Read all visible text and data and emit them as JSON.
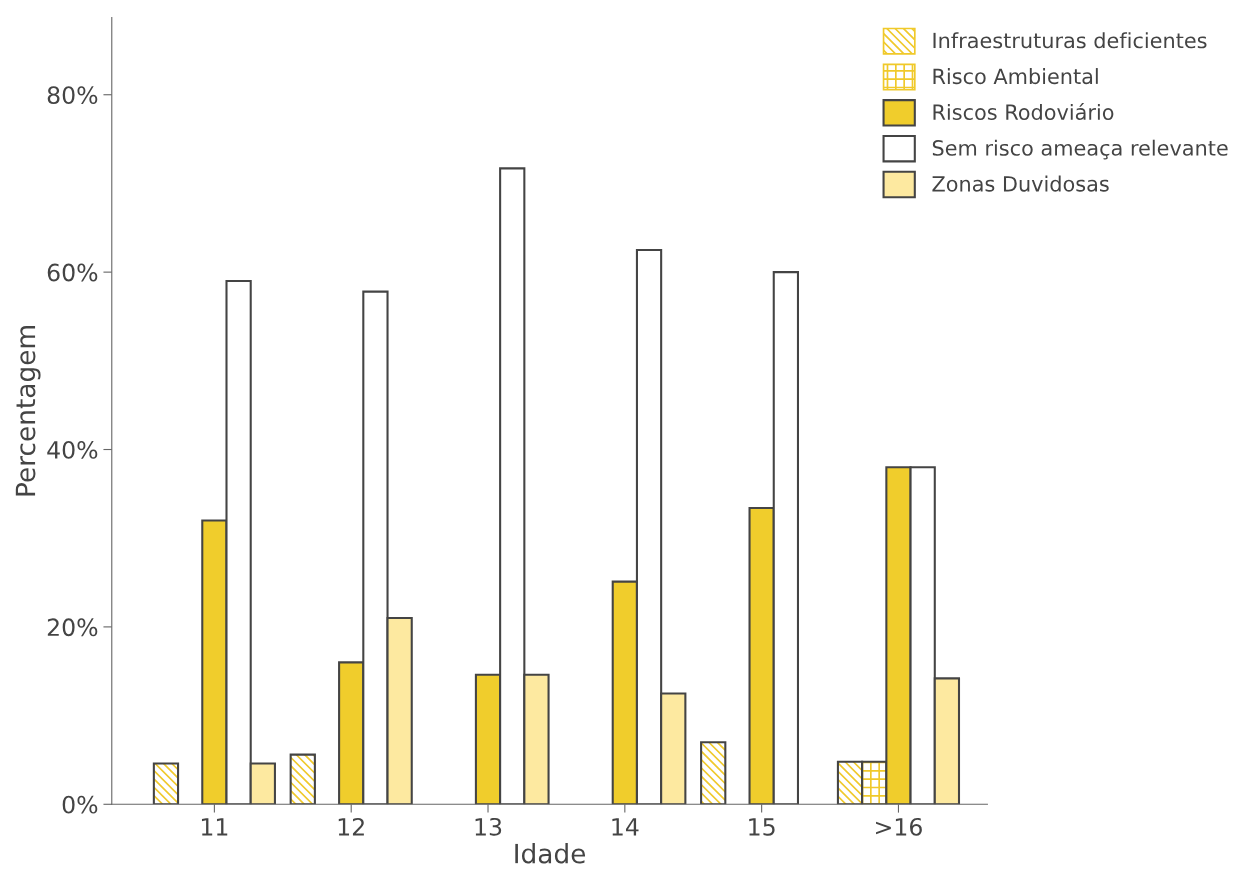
{
  "chart_data": {
    "type": "bar",
    "xlabel": "Idade",
    "ylabel": "Percentagem",
    "categories": [
      "11",
      "12",
      "13",
      "14",
      "15",
      ">16"
    ],
    "series": [
      {
        "name": "Infraestruturas deficientes",
        "color": "#f0c92a",
        "values": [
          4.6,
          5.6,
          null,
          null,
          7.0,
          4.8
        ]
      },
      {
        "name": "Risco Ambiental",
        "color": "#f0c92a",
        "values": [
          null,
          null,
          null,
          null,
          null,
          4.8
        ]
      },
      {
        "name": "Riscos Rodoviário",
        "color": "#f0cd2c",
        "values": [
          32,
          16,
          14.6,
          25.1,
          33.4,
          38
        ]
      },
      {
        "name": "Sem risco ameaça relevante",
        "color": "#ffffff",
        "values": [
          59,
          57.8,
          71.7,
          62.5,
          60,
          38
        ]
      },
      {
        "name": "Zonas Duvidosas",
        "color": "#fde9a0",
        "values": [
          4.6,
          21,
          14.6,
          12.5,
          null,
          14.2
        ]
      }
    ],
    "ylim": [
      0,
      88.7
    ],
    "yticks": [
      {
        "value": 0,
        "label": "0%"
      },
      {
        "value": 20,
        "label": "20%"
      },
      {
        "value": 40,
        "label": "40%"
      },
      {
        "value": 60,
        "label": "60%"
      },
      {
        "value": 80,
        "label": "80%"
      }
    ],
    "grid": false,
    "legend": "top right"
  }
}
